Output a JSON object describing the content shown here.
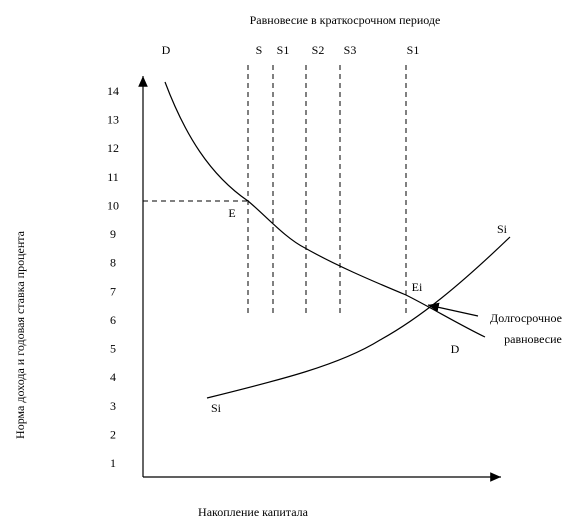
{
  "title": "Равновесие в краткосрочном периоде",
  "y_axis": {
    "title": "Норма дохода и годовая ставка процента",
    "ticks": [
      1,
      2,
      3,
      4,
      5,
      6,
      7,
      8,
      9,
      10,
      11,
      12,
      13,
      14
    ]
  },
  "x_axis": {
    "title": "Накопление капитала"
  },
  "curves": {
    "demand_top": "D",
    "demand_bottom": "D",
    "supply_right": "Si",
    "supply_left": "Si"
  },
  "supply_lines": [
    "S",
    "S1",
    "S2",
    "S3",
    "S1"
  ],
  "points": {
    "short_run": "E",
    "long_run": "Ei"
  },
  "annotation": [
    "Долгосрочное",
    "равновесие"
  ]
}
